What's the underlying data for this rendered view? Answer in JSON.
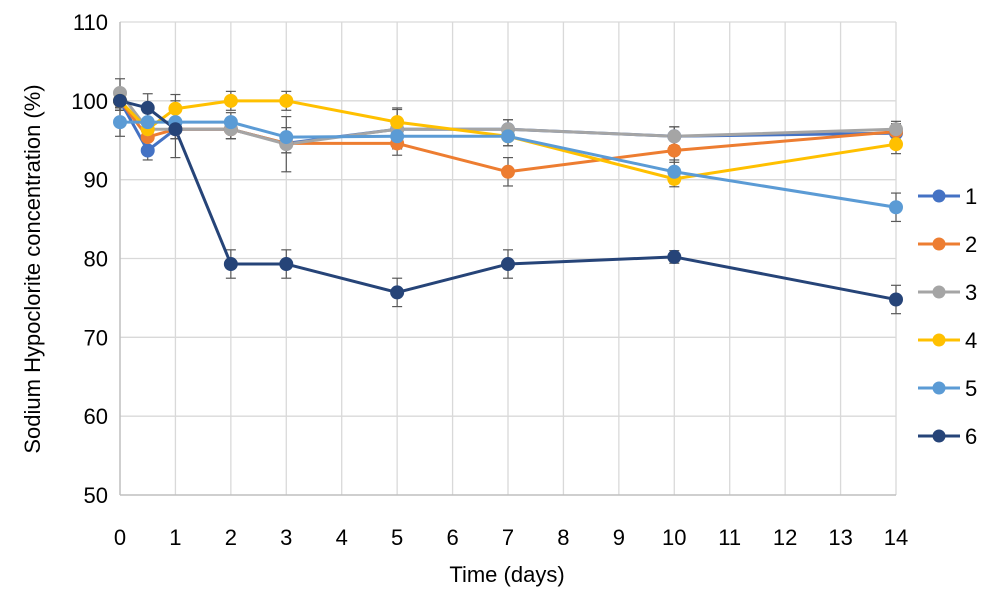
{
  "chart_data": {
    "type": "line",
    "title": "",
    "xlabel": "Time (days)",
    "ylabel": "Sodium Hypoclorite concentration (%)",
    "xlim": [
      0,
      14
    ],
    "ylim": [
      50,
      110
    ],
    "x_ticks": [
      0,
      1,
      2,
      3,
      4,
      5,
      6,
      7,
      8,
      9,
      10,
      11,
      12,
      13,
      14
    ],
    "y_ticks": [
      50,
      60,
      70,
      80,
      90,
      100,
      110
    ],
    "grid": true,
    "legend_position": "right",
    "x": [
      0,
      0.5,
      1,
      2,
      3,
      5,
      7,
      10,
      14
    ],
    "series": [
      {
        "name": "1",
        "color": "#4472C4",
        "values": [
          100,
          93.7,
          96.4,
          96.4,
          94.6,
          96.4,
          96.4,
          95.5,
          95.9
        ],
        "errors": [
          1.2,
          1.2,
          1.2,
          1.2,
          1.2,
          1.2,
          1.2,
          1.2,
          1.0
        ]
      },
      {
        "name": "2",
        "color": "#ED7D31",
        "values": [
          100,
          95.4,
          96.4,
          96.4,
          94.6,
          94.6,
          91.0,
          93.7,
          96.1
        ],
        "errors": [
          1.2,
          1.2,
          1.2,
          1.2,
          1.2,
          1.5,
          1.8,
          1.5,
          1.0
        ]
      },
      {
        "name": "3",
        "color": "#A5A5A5",
        "values": [
          101.0,
          96.4,
          96.4,
          96.4,
          94.5,
          96.4,
          96.4,
          95.5,
          96.4
        ],
        "errors": [
          1.8,
          1.2,
          1.2,
          1.2,
          3.5,
          2.5,
          1.2,
          1.2,
          1.0
        ]
      },
      {
        "name": "4",
        "color": "#FFC000",
        "values": [
          100,
          96.4,
          99.0,
          100,
          100,
          97.3,
          95.5,
          90.1,
          94.5
        ],
        "errors": [
          1.2,
          1.2,
          1.8,
          1.2,
          1.2,
          1.8,
          1.2,
          1.0,
          1.2
        ]
      },
      {
        "name": "5",
        "color": "#5B9BD5",
        "values": [
          97.3,
          97.3,
          97.3,
          97.3,
          95.4,
          95.5,
          95.5,
          91.0,
          86.5
        ],
        "errors": [
          1.8,
          1.2,
          1.2,
          1.2,
          1.2,
          1.2,
          1.2,
          1.5,
          1.8
        ]
      },
      {
        "name": "6",
        "color": "#264478",
        "values": [
          100,
          99.1,
          96.4,
          79.3,
          79.3,
          75.7,
          79.3,
          80.2,
          74.8
        ],
        "errors": [
          1.2,
          1.8,
          3.6,
          1.8,
          1.8,
          1.8,
          1.8,
          0.8,
          1.8
        ]
      }
    ]
  }
}
